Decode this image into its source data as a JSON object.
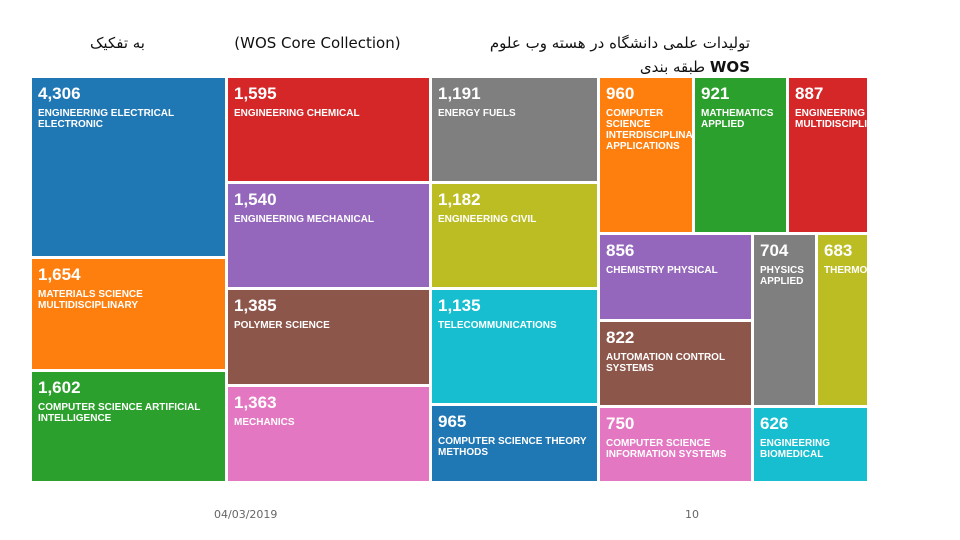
{
  "title": {
    "line1_part_a": "تولیدات علمی دانشگاه در هسته وب علوم",
    "line1_part_b": "(WOS Core Collection)",
    "line1_part_c": "به تفکیک",
    "line2_prefix": "طبقه بندی",
    "line2_wos": "WOS"
  },
  "footer": {
    "date": "04/03/2019",
    "page": "10"
  },
  "chart_data": {
    "type": "treemap",
    "title": "",
    "items": [
      {
        "label": "ENGINEERING ELECTRICAL ELECTRONIC",
        "display": "4,306",
        "value": 4306,
        "color": "#1f77b4"
      },
      {
        "label": "MATERIALS SCIENCE MULTIDISCIPLINARY",
        "display": "1,654",
        "value": 1654,
        "color": "#ff7f0e"
      },
      {
        "label": "COMPUTER SCIENCE ARTIFICIAL INTELLIGENCE",
        "display": "1,602",
        "value": 1602,
        "color": "#2ca02c"
      },
      {
        "label": "ENGINEERING CHEMICAL",
        "display": "1,595",
        "value": 1595,
        "color": "#d62728"
      },
      {
        "label": "ENGINEERING MECHANICAL",
        "display": "1,540",
        "value": 1540,
        "color": "#9467bd"
      },
      {
        "label": "POLYMER SCIENCE",
        "display": "1,385",
        "value": 1385,
        "color": "#8c564b"
      },
      {
        "label": "MECHANICS",
        "display": "1,363",
        "value": 1363,
        "color": "#e377c2"
      },
      {
        "label": "ENERGY FUELS",
        "display": "1,191",
        "value": 1191,
        "color": "#7f7f7f"
      },
      {
        "label": "ENGINEERING CIVIL",
        "display": "1,182",
        "value": 1182,
        "color": "#bcbd22"
      },
      {
        "label": "TELECOMMUNICATIONS",
        "display": "1,135",
        "value": 1135,
        "color": "#17becf"
      },
      {
        "label": "COMPUTER SCIENCE THEORY METHODS",
        "display": "965",
        "value": 965,
        "color": "#1f77b4"
      },
      {
        "label": "COMPUTER SCIENCE INTERDISCIPLINARY APPLICATIONS",
        "display": "960",
        "value": 960,
        "color": "#ff7f0e"
      },
      {
        "label": "MATHEMATICS APPLIED",
        "display": "921",
        "value": 921,
        "color": "#2ca02c"
      },
      {
        "label": "ENGINEERING MULTIDISCIPLINARY",
        "display": "887",
        "value": 887,
        "color": "#d62728"
      },
      {
        "label": "CHEMISTRY PHYSICAL",
        "display": "856",
        "value": 856,
        "color": "#9467bd"
      },
      {
        "label": "AUTOMATION CONTROL SYSTEMS",
        "display": "822",
        "value": 822,
        "color": "#8c564b"
      },
      {
        "label": "COMPUTER SCIENCE INFORMATION SYSTEMS",
        "display": "750",
        "value": 750,
        "color": "#e377c2"
      },
      {
        "label": "PHYSICS APPLIED",
        "display": "704",
        "value": 704,
        "color": "#7f7f7f"
      },
      {
        "label": "THERMODYNAMICS",
        "display": "683",
        "value": 683,
        "color": "#bcbd22"
      },
      {
        "label": "ENGINEERING BIOMEDICAL",
        "display": "626",
        "value": 626,
        "color": "#17becf"
      }
    ]
  }
}
